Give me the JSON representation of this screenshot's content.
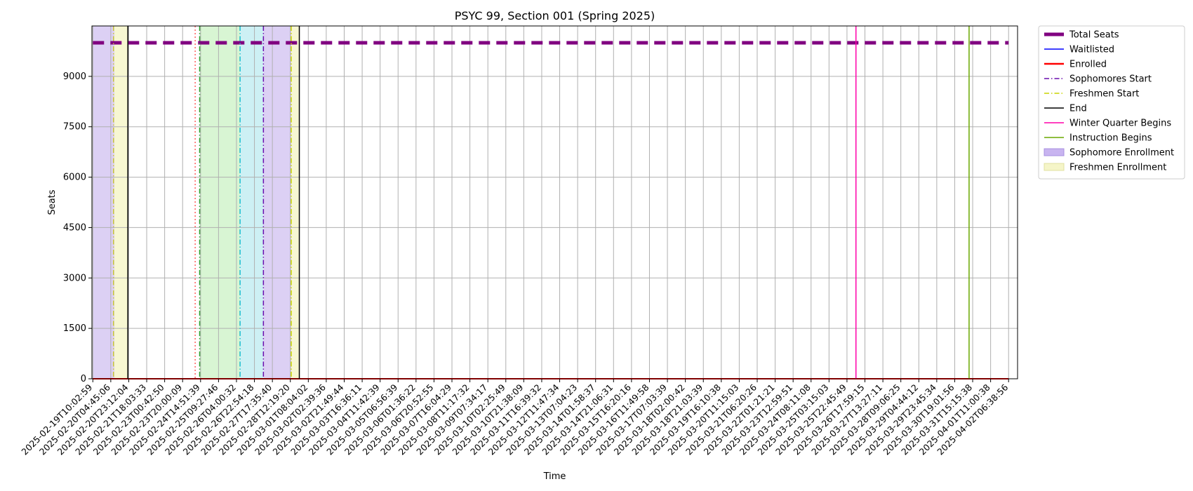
{
  "chart_data": {
    "type": "line",
    "title": "PSYC 99, Section 001 (Spring 2025)",
    "xlabel": "Time",
    "ylabel": "Seats",
    "x_ticks": [
      "2025-02-19T10:02:59",
      "2025-02-20T04:45:06",
      "2025-02-20T23:12:04",
      "2025-02-21T18:03:33",
      "2025-02-23T00:42:50",
      "2025-02-23T20:00:09",
      "2025-02-24T14:51:39",
      "2025-02-25T09:27:46",
      "2025-02-26T04:00:32",
      "2025-02-26T22:54:18",
      "2025-02-27T17:35:40",
      "2025-02-28T12:19:20",
      "2025-03-01T08:04:02",
      "2025-03-02T02:39:36",
      "2025-03-02T21:49:44",
      "2025-03-03T16:36:11",
      "2025-03-04T11:42:39",
      "2025-03-05T06:56:39",
      "2025-03-06T01:36:22",
      "2025-03-06T20:52:55",
      "2025-03-07T16:04:29",
      "2025-03-08T11:17:32",
      "2025-03-09T07:34:17",
      "2025-03-10T02:25:49",
      "2025-03-10T21:38:09",
      "2025-03-11T16:39:32",
      "2025-03-12T11:47:34",
      "2025-03-13T07:04:23",
      "2025-03-14T01:58:37",
      "2025-03-14T21:06:31",
      "2025-03-15T16:20:16",
      "2025-03-16T11:49:58",
      "2025-03-17T07:03:39",
      "2025-03-18T02:00:42",
      "2025-03-18T21:03:39",
      "2025-03-19T16:10:38",
      "2025-03-20T11:15:03",
      "2025-03-21T06:20:26",
      "2025-03-22T01:21:21",
      "2025-03-23T12:59:51",
      "2025-03-24T08:11:08",
      "2025-03-25T03:15:03",
      "2025-03-25T22:45:49",
      "2025-03-26T17:59:15",
      "2025-03-27T13:27:11",
      "2025-03-28T09:06:25",
      "2025-03-29T04:44:12",
      "2025-03-29T23:45:34",
      "2025-03-30T19:01:56",
      "2025-03-31T15:15:38",
      "2025-04-01T11:00:38",
      "2025-04-02T06:38:56"
    ],
    "xlim": [
      -0.05,
      51.5
    ],
    "ylim": [
      0,
      10500
    ],
    "y_ticks": [
      0,
      1500,
      3000,
      4500,
      6000,
      7500,
      9000
    ],
    "grid": true,
    "legend_position": "outside-right-top",
    "series": [
      {
        "name": "Total Seats",
        "color": "#800080",
        "style": "dashed-thick",
        "y_constant": 10000
      },
      {
        "name": "Waitlisted",
        "color": "#0000ff",
        "style": "solid",
        "y_constant": 0
      },
      {
        "name": "Enrolled",
        "color": "#ff0000",
        "style": "solid-thick",
        "y_constant": 0
      }
    ],
    "event_lines": [
      {
        "name": "Sophomores Start",
        "color": "#6a0dad",
        "style": "dashdot",
        "legend": true
      },
      {
        "name": "Freshmen Start",
        "color": "#c8d400",
        "style": "dashdot",
        "legend": true
      },
      {
        "name": "End",
        "color": "#000000",
        "style": "solid",
        "legend": true
      },
      {
        "name": "Winter Quarter Begins",
        "color": "#ff00aa",
        "style": "solid",
        "legend": true
      },
      {
        "name": "Instruction Begins",
        "color": "#6aa800",
        "style": "solid",
        "legend": true
      },
      {
        "name": "Sophomore Enrollment",
        "color": "#c8b4f0",
        "style": "span",
        "legend": true
      },
      {
        "name": "Freshmen Enrollment",
        "color": "#f5f5c8",
        "style": "span",
        "legend": true
      }
    ],
    "spans": [
      {
        "x0": 0.0,
        "x1": 1.2,
        "color": "#dcd0f4"
      },
      {
        "x0": 1.2,
        "x1": 1.95,
        "color": "#f7f7d2"
      },
      {
        "x0": 5.95,
        "x1": 8.2,
        "color": "#d8f5d3"
      },
      {
        "x0": 8.2,
        "x1": 9.5,
        "color": "#cdf0f4"
      },
      {
        "x0": 9.5,
        "x1": 11.05,
        "color": "#dcd0f4"
      },
      {
        "x0": 11.05,
        "x1": 11.5,
        "color": "#f7f7d2"
      }
    ],
    "vlines": [
      {
        "x": 1.15,
        "color": "#c8c830",
        "style": "dashdot"
      },
      {
        "x": 1.95,
        "color": "#000000",
        "style": "solid"
      },
      {
        "x": 5.7,
        "color": "#ff6060",
        "style": "dotted"
      },
      {
        "x": 5.95,
        "color": "#2ca02c",
        "style": "dashdot"
      },
      {
        "x": 8.2,
        "color": "#17becf",
        "style": "dashdot"
      },
      {
        "x": 9.5,
        "color": "#6a0dad",
        "style": "dashdot"
      },
      {
        "x": 11.05,
        "color": "#c8d400",
        "style": "dashdot"
      },
      {
        "x": 11.5,
        "color": "#000000",
        "style": "solid"
      },
      {
        "x": 42.5,
        "color": "#ff00aa",
        "style": "solid"
      },
      {
        "x": 48.8,
        "color": "#6aa800",
        "style": "solid"
      }
    ]
  }
}
